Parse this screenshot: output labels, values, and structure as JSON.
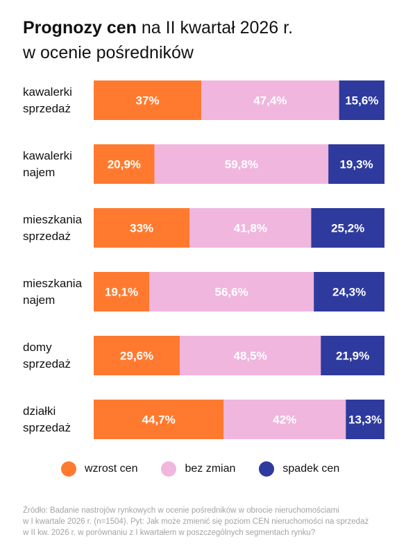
{
  "title": {
    "bold": "Prognozy cen",
    "rest_line1": " na II kwartał 2026 r.",
    "line2": "w ocenie pośredników"
  },
  "chart_data": {
    "type": "bar",
    "orientation": "horizontal-stacked-100",
    "categories": [
      [
        "kawalerki",
        "sprzedaż"
      ],
      [
        "kawalerki",
        "najem"
      ],
      [
        "mieszkania",
        "sprzedaż"
      ],
      [
        "mieszkania",
        "najem"
      ],
      [
        "domy",
        "sprzedaż"
      ],
      [
        "działki",
        "sprzedaż"
      ]
    ],
    "series": [
      {
        "name": "wzrost cen",
        "color": "#ff7a2f",
        "text_color": "#ffffff",
        "values": [
          37,
          20.9,
          33,
          19.1,
          29.6,
          44.7
        ],
        "labels": [
          "37%",
          "20,9%",
          "33%",
          "19,1%",
          "29,6%",
          "44,7%"
        ]
      },
      {
        "name": "bez zmian",
        "color": "#f0b6dd",
        "text_color": "#ffffff",
        "values": [
          47.4,
          59.8,
          41.8,
          56.6,
          48.5,
          42
        ],
        "labels": [
          "47,4%",
          "59,8%",
          "41,8%",
          "56,6%",
          "48,5%",
          "42%"
        ]
      },
      {
        "name": "spadek cen",
        "color": "#2e3a9e",
        "text_color": "#ffffff",
        "values": [
          15.6,
          19.3,
          25.2,
          24.3,
          21.9,
          13.3
        ],
        "labels": [
          "15,6%",
          "19,3%",
          "25,2%",
          "24,3%",
          "21,9%",
          "13,3%"
        ]
      }
    ],
    "xlim": [
      0,
      100
    ],
    "legend_position": "bottom"
  },
  "source": {
    "line1": "Źródło: Badanie nastrojów rynkowych w ocenie  pośredników w obrocie nieruchomościami",
    "line2": "w I kwartale 2026 r. (n=1504). Pyt: Jak może zmienić się poziom CEN nieruchomości na sprzedaż",
    "line3": "w II kw. 2026 r. w porównaniu z I kwartałem w poszczególnych segmentach rynku?"
  }
}
